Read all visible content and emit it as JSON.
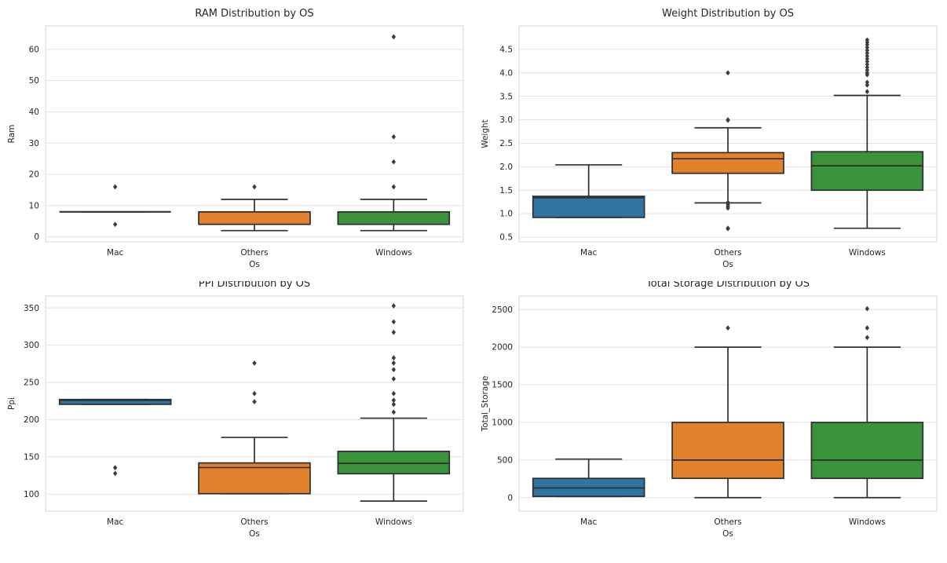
{
  "figure": {
    "background": "#ffffff",
    "layout_hint": "2x2 grid of seaborn-style box plots, whitegrid"
  },
  "palette": {
    "series_colors": [
      "#3274a1",
      "#e1812c",
      "#3a923a"
    ],
    "box_edge": "#2e2e2e",
    "outlier": "#3d3d3d",
    "grid": "#e2e2e2",
    "spine": "#d5d5d5",
    "text": "#262626"
  },
  "chart_data": [
    {
      "id": "ram",
      "type": "box",
      "title": "RAM Distribution by OS",
      "xlabel": "Os",
      "ylabel": "Ram",
      "categories": [
        "Mac",
        "Others",
        "Windows"
      ],
      "yticks": [
        0,
        10,
        20,
        30,
        40,
        50,
        60
      ],
      "ytick_labels": [
        "0",
        "10",
        "20",
        "30",
        "40",
        "50",
        "60"
      ],
      "ylim": [
        -1.6,
        67.5
      ],
      "grid": true,
      "legend": false,
      "boxes": [
        {
          "category": "Mac",
          "q1": 8,
          "median": 8,
          "q3": 8,
          "whisker_low": 8,
          "whisker_high": 8,
          "outliers": [
            16,
            4
          ]
        },
        {
          "category": "Others",
          "q1": 4,
          "median": 8,
          "q3": 8,
          "whisker_low": 2,
          "whisker_high": 12,
          "outliers": [
            16
          ]
        },
        {
          "category": "Windows",
          "q1": 4,
          "median": 8,
          "q3": 8,
          "whisker_low": 2,
          "whisker_high": 12,
          "outliers": [
            16,
            24,
            32,
            64
          ]
        }
      ]
    },
    {
      "id": "weight",
      "type": "box",
      "title": "Weight Distribution by OS",
      "xlabel": "Os",
      "ylabel": "Weight",
      "categories": [
        "Mac",
        "Others",
        "Windows"
      ],
      "yticks": [
        0.5,
        1.0,
        1.5,
        2.0,
        2.5,
        3.0,
        3.5,
        4.0,
        4.5
      ],
      "ytick_labels": [
        "0.5",
        "1.0",
        "1.5",
        "2.0",
        "2.5",
        "3.0",
        "3.5",
        "4.0",
        "4.5"
      ],
      "ylim": [
        0.4,
        5.0
      ],
      "grid": true,
      "legend": false,
      "boxes": [
        {
          "category": "Mac",
          "q1": 0.92,
          "median": 1.34,
          "q3": 1.37,
          "whisker_low": 0.92,
          "whisker_high": 2.04,
          "outliers": []
        },
        {
          "category": "Others",
          "q1": 1.86,
          "median": 2.17,
          "q3": 2.3,
          "whisker_low": 1.23,
          "whisker_high": 2.83,
          "outliers": [
            4.0,
            3.0,
            2.99,
            1.24,
            1.2,
            1.16,
            1.12,
            0.69,
            0.68
          ]
        },
        {
          "category": "Windows",
          "q1": 1.5,
          "median": 2.02,
          "q3": 2.32,
          "whisker_low": 0.69,
          "whisker_high": 3.52,
          "outliers": [
            4.7,
            4.65,
            4.6,
            4.54,
            4.48,
            4.42,
            4.36,
            4.3,
            4.24,
            4.18,
            4.12,
            4.06,
            4.0,
            3.96,
            3.8,
            3.74,
            3.6
          ]
        }
      ]
    },
    {
      "id": "ppi",
      "type": "box",
      "title": "PPI Distribution by OS",
      "xlabel": "Os",
      "ylabel": "Ppi",
      "categories": [
        "Mac",
        "Others",
        "Windows"
      ],
      "yticks": [
        100,
        150,
        200,
        250,
        300,
        350
      ],
      "ytick_labels": [
        "100",
        "150",
        "200",
        "250",
        "300",
        "350"
      ],
      "ylim": [
        77,
        366
      ],
      "grid": true,
      "legend": false,
      "boxes": [
        {
          "category": "Mac",
          "q1": 220.5,
          "median": 226.0,
          "q3": 227.0,
          "whisker_low": 220.5,
          "whisker_high": 227.0,
          "outliers": [
            135.4,
            127.7
          ]
        },
        {
          "category": "Others",
          "q1": 100.5,
          "median": 135.6,
          "q3": 141.8,
          "whisker_low": 100.5,
          "whisker_high": 176.1,
          "outliers": [
            275.9,
            235.0,
            224.0
          ]
        },
        {
          "category": "Windows",
          "q1": 127.3,
          "median": 141.2,
          "q3": 157.4,
          "whisker_low": 90.6,
          "whisker_high": 201.9,
          "outliers": [
            352.8,
            331.3,
            317.3,
            283.0,
            276.0,
            267.1,
            254.7,
            235.0,
            226.0,
            220.5,
            210.0
          ]
        }
      ]
    },
    {
      "id": "total-storage",
      "type": "box",
      "title": "Total Storage Distribution by OS",
      "xlabel": "Os",
      "ylabel": "Total_Storage",
      "categories": [
        "Mac",
        "Others",
        "Windows"
      ],
      "yticks": [
        0,
        500,
        1000,
        1500,
        2000,
        2500
      ],
      "ytick_labels": [
        "0",
        "500",
        "1000",
        "1500",
        "2000",
        "2500"
      ],
      "ylim": [
        -180,
        2680
      ],
      "grid": true,
      "legend": false,
      "boxes": [
        {
          "category": "Mac",
          "q1": 16,
          "median": 128,
          "q3": 256,
          "whisker_low": 16,
          "whisker_high": 512,
          "outliers": []
        },
        {
          "category": "Others",
          "q1": 256,
          "median": 500,
          "q3": 1000,
          "whisker_low": 0,
          "whisker_high": 2000,
          "outliers": [
            2256
          ]
        },
        {
          "category": "Windows",
          "q1": 256,
          "median": 500,
          "q3": 1000,
          "whisker_low": 0,
          "whisker_high": 2000,
          "outliers": [
            2512,
            2256,
            2128
          ]
        }
      ]
    }
  ]
}
